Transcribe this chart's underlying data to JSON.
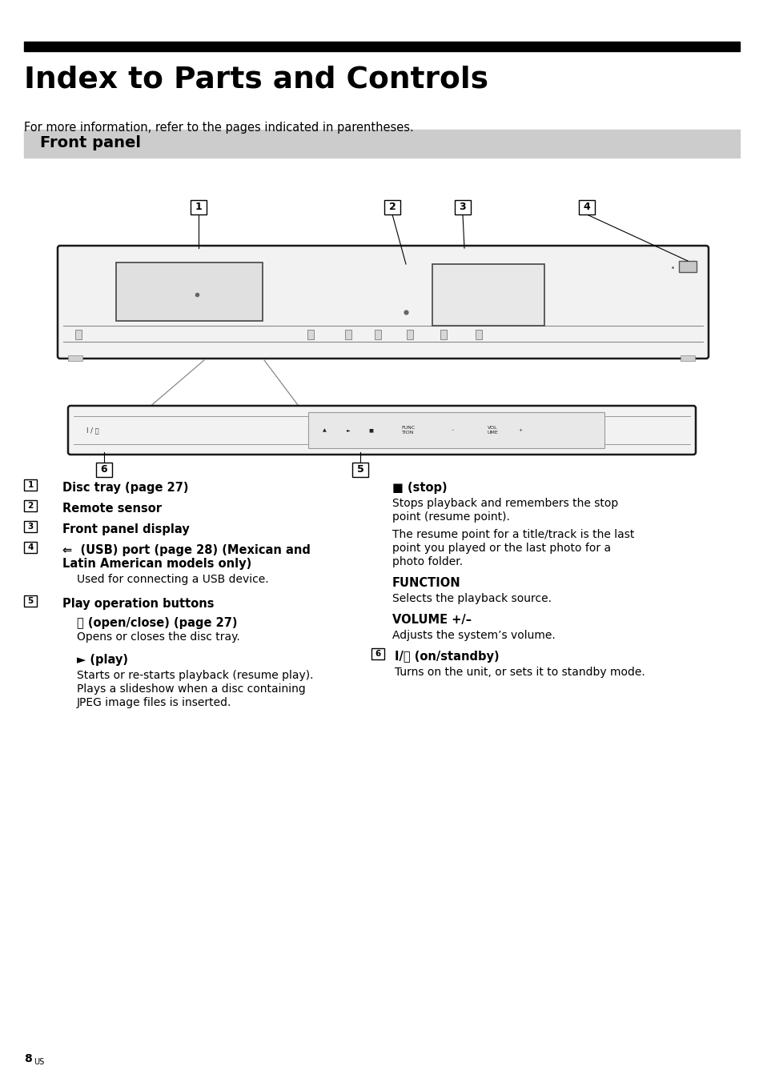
{
  "title": "Index to Parts and Controls",
  "title_bar_color": "#000000",
  "subtitle": "For more information, refer to the pages indicated in parentheses.",
  "section_title": "Front panel",
  "section_bg": "#cccccc",
  "page_number": "8",
  "page_suffix": "US",
  "bg_color": "#ffffff"
}
